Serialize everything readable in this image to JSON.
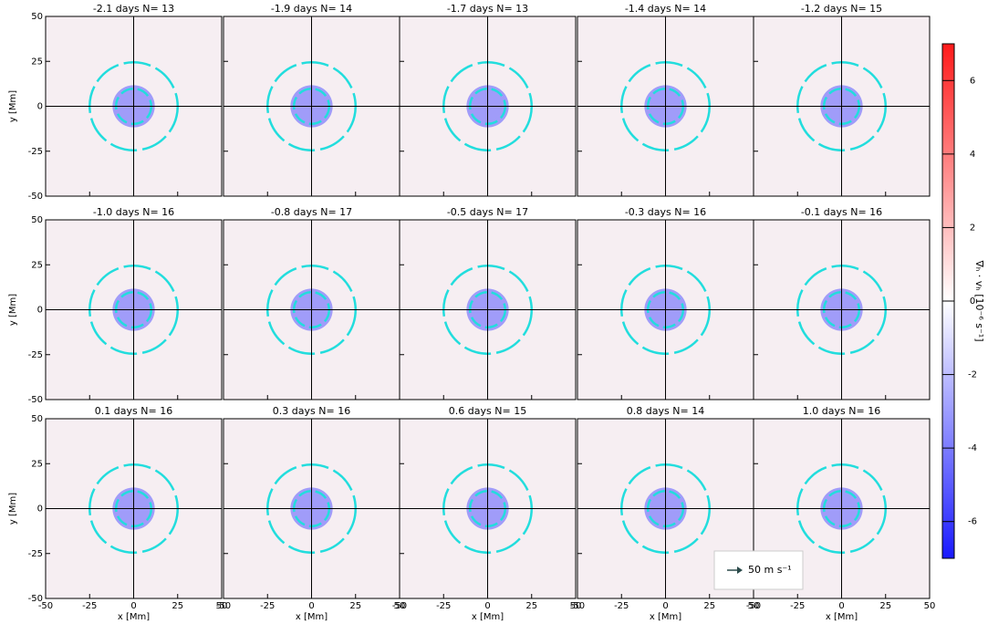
{
  "chart_data": {
    "type": "heatmap",
    "panels": [
      "-2.1 days  N= 13",
      "-1.9 days  N= 14",
      "-1.7 days  N= 13",
      "-1.4 days  N= 14",
      "-1.2 days  N= 15",
      "-1.0 days  N= 16",
      "-0.8 days  N= 17",
      "-0.5 days  N= 17",
      "-0.3 days  N= 16",
      "-0.1 days  N= 16",
      "0.1 days  N= 16",
      "0.3 days  N= 16",
      "0.6 days  N= 15",
      "0.8 days  N= 14",
      "1.0 days  N= 16"
    ],
    "columns": 5,
    "xlabel": "x [Mm]",
    "ylabel": "y [Mm]",
    "xlim": [
      -50,
      50
    ],
    "xticks": [
      -50,
      -25,
      0,
      25,
      50
    ],
    "ylim": [
      -50,
      50
    ],
    "yticks": [
      -50,
      -25,
      0,
      25,
      50
    ],
    "colorbar": {
      "label": "∇ₕ · vₕ  [10⁻⁶ s⁻¹]",
      "lim": [
        -7,
        7
      ],
      "ticks": [
        -6,
        -4,
        -2,
        0,
        2,
        4,
        6
      ],
      "colors": [
        "#1a1aff",
        "#ffffff",
        "#ff1a1a"
      ]
    },
    "legend": "50 m s⁻¹"
  }
}
